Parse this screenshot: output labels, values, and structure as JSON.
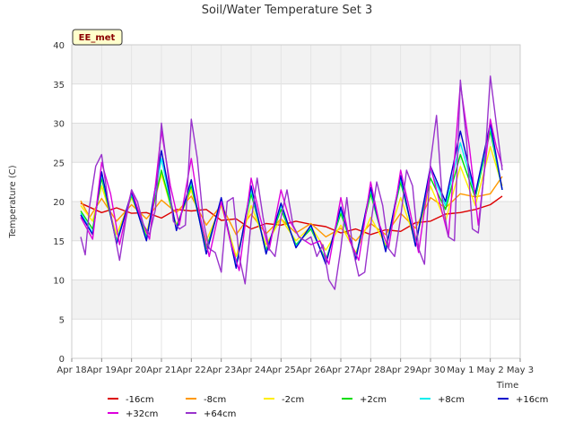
{
  "chart_data": {
    "type": "line",
    "title": "Soil/Water Temperature Set 3",
    "xlabel": "Time",
    "ylabel": "Temperature (C)",
    "badge": "EE_met",
    "ylim": [
      0,
      40
    ],
    "yticks": [
      0,
      5,
      10,
      15,
      20,
      25,
      30,
      35,
      40
    ],
    "xlim": [
      0,
      15
    ],
    "x_unit": "days from Apr 18",
    "xticks": [
      {
        "value": 0,
        "label": "Apr 18"
      },
      {
        "value": 1,
        "label": "Apr 19"
      },
      {
        "value": 2,
        "label": "Apr 20"
      },
      {
        "value": 3,
        "label": "Apr 21"
      },
      {
        "value": 4,
        "label": "Apr 22"
      },
      {
        "value": 5,
        "label": "Apr 23"
      },
      {
        "value": 6,
        "label": "Apr 24"
      },
      {
        "value": 7,
        "label": "Apr 25"
      },
      {
        "value": 8,
        "label": "Apr 26"
      },
      {
        "value": 9,
        "label": "Apr 27"
      },
      {
        "value": 10,
        "label": "Apr 28"
      },
      {
        "value": 11,
        "label": "Apr 29"
      },
      {
        "value": 12,
        "label": "Apr 30"
      },
      {
        "value": 13,
        "label": "May 1"
      },
      {
        "value": 14,
        "label": "May 2"
      },
      {
        "value": 15,
        "label": "May 3"
      }
    ],
    "grid": true,
    "legend_position": "bottom",
    "series": [
      {
        "name": "-16cm",
        "color": "#dd0000",
        "x": [
          0.3,
          1,
          1.5,
          2,
          2.5,
          3,
          3.5,
          4,
          4.5,
          5,
          5.5,
          6,
          6.5,
          7,
          7.5,
          8,
          8.5,
          9,
          9.5,
          10,
          10.5,
          11,
          11.5,
          12,
          12.5,
          13,
          13.5,
          14,
          14.4
        ],
        "y": [
          19.8,
          18.6,
          19.2,
          18.5,
          18.6,
          17.9,
          19.0,
          18.8,
          19.0,
          17.6,
          17.8,
          16.5,
          17.2,
          17.0,
          17.5,
          17.1,
          16.8,
          16.0,
          16.5,
          15.8,
          16.4,
          16.2,
          17.3,
          17.5,
          18.4,
          18.6,
          19.0,
          19.6,
          20.7
        ]
      },
      {
        "name": "-8cm",
        "color": "#ff9900",
        "x": [
          0.3,
          0.6,
          1,
          1.5,
          2,
          2.5,
          3,
          3.5,
          4,
          4.5,
          5,
          5.5,
          6,
          6.5,
          7,
          7.5,
          8,
          8.5,
          9,
          9.5,
          10,
          10.5,
          11,
          11.5,
          12,
          12.5,
          13,
          13.5,
          14,
          14.4
        ],
        "y": [
          20.1,
          18.0,
          20.4,
          17.5,
          19.6,
          17.8,
          20.2,
          18.6,
          20.7,
          17.0,
          19.6,
          15.8,
          18.4,
          15.9,
          17.8,
          16.0,
          17.2,
          15.5,
          16.6,
          15.0,
          17.2,
          15.8,
          18.5,
          16.6,
          20.5,
          19.2,
          21.0,
          20.6,
          21.0,
          23.2
        ]
      },
      {
        "name": "-2cm",
        "color": "#ffee00",
        "x": [
          0.3,
          0.7,
          1,
          1.5,
          2,
          2.5,
          3,
          3.5,
          4,
          4.5,
          5,
          5.5,
          6,
          6.5,
          7,
          7.5,
          8,
          8.5,
          9,
          9.5,
          10,
          10.5,
          11,
          11.5,
          12,
          12.5,
          13,
          13.5,
          14,
          14.4
        ],
        "y": [
          19.5,
          17.5,
          22.0,
          15.8,
          20.5,
          16.0,
          23.5,
          17.0,
          21.5,
          15.0,
          19.5,
          13.0,
          19.5,
          14.5,
          17.8,
          15.0,
          16.8,
          13.8,
          17.0,
          13.5,
          18.0,
          14.5,
          20.5,
          15.0,
          22.0,
          17.5,
          24.5,
          19.5,
          27.0,
          22.0
        ]
      },
      {
        "name": "+2cm",
        "color": "#00dd00",
        "x": [
          0.3,
          0.7,
          1,
          1.5,
          2,
          2.5,
          3,
          3.5,
          4,
          4.5,
          5,
          5.5,
          6,
          6.5,
          7,
          7.5,
          8,
          8.5,
          9,
          9.5,
          10,
          10.5,
          11,
          11.5,
          12,
          12.5,
          13,
          13.5,
          14,
          14.4
        ],
        "y": [
          18.8,
          16.5,
          23.0,
          15.0,
          20.8,
          15.5,
          24.0,
          16.8,
          22.0,
          14.0,
          20.0,
          12.0,
          21.0,
          13.8,
          19.0,
          14.5,
          16.5,
          12.5,
          18.5,
          13.0,
          21.0,
          14.0,
          22.5,
          14.8,
          23.0,
          19.0,
          26.0,
          20.5,
          29.0,
          21.5
        ]
      },
      {
        "name": "+8cm",
        "color": "#00eeee",
        "x": [
          0.3,
          0.7,
          1,
          1.5,
          2,
          2.5,
          3,
          3.5,
          4,
          4.5,
          5,
          5.5,
          6,
          6.5,
          7,
          7.5,
          8,
          8.5,
          9,
          9.5,
          10,
          10.5,
          11,
          11.5,
          12,
          12.5,
          13,
          13.5,
          14,
          14.4
        ],
        "y": [
          18.5,
          16.0,
          23.5,
          14.8,
          21.0,
          15.2,
          25.5,
          16.5,
          22.5,
          13.5,
          20.3,
          11.8,
          21.5,
          13.5,
          19.5,
          14.3,
          16.8,
          12.2,
          19.0,
          12.8,
          21.5,
          13.8,
          23.0,
          14.5,
          24.0,
          19.5,
          27.5,
          20.8,
          29.5,
          21.5
        ]
      },
      {
        "name": "+16cm",
        "color": "#0000cc",
        "x": [
          0.3,
          0.7,
          1,
          1.5,
          2,
          2.5,
          3,
          3.5,
          4,
          4.5,
          5,
          5.5,
          6,
          6.5,
          7,
          7.5,
          8,
          8.5,
          9,
          9.5,
          10,
          10.5,
          11,
          11.5,
          12,
          12.5,
          13,
          13.5,
          14,
          14.4
        ],
        "y": [
          18.3,
          15.8,
          23.8,
          14.6,
          21.2,
          15.0,
          26.5,
          16.3,
          22.8,
          13.3,
          20.5,
          11.5,
          22.0,
          13.3,
          19.8,
          14.1,
          17.0,
          12.0,
          19.3,
          12.6,
          21.8,
          13.6,
          23.3,
          14.3,
          24.5,
          20.0,
          29.0,
          21.0,
          30.0,
          21.5
        ]
      },
      {
        "name": "+32cm",
        "color": "#dd00dd",
        "x": [
          0.3,
          0.7,
          1,
          1.3,
          1.6,
          2,
          2.3,
          2.6,
          3,
          3.3,
          3.6,
          4,
          4.3,
          4.6,
          5,
          5.3,
          5.6,
          6,
          6.3,
          6.6,
          7,
          7.3,
          7.6,
          8,
          8.3,
          8.6,
          9,
          9.3,
          9.6,
          10,
          10.3,
          10.6,
          11,
          11.3,
          11.6,
          12,
          12.3,
          12.6,
          13,
          13.3,
          13.6,
          14,
          14.2,
          14.4
        ],
        "y": [
          18.0,
          15.2,
          25.0,
          21.0,
          14.5,
          21.5,
          18.0,
          15.2,
          29.0,
          22.0,
          17.0,
          25.5,
          18.0,
          13.0,
          20.0,
          15.0,
          11.2,
          23.0,
          18.0,
          13.8,
          21.5,
          17.5,
          15.5,
          14.5,
          15.0,
          12.0,
          20.5,
          15.0,
          12.5,
          22.5,
          17.0,
          14.0,
          24.0,
          19.0,
          13.5,
          24.5,
          20.0,
          15.5,
          35.0,
          27.0,
          17.0,
          30.5,
          27.0,
          24.5
        ]
      },
      {
        "name": "+64cm",
        "color": "#9933cc",
        "x": [
          0.3,
          0.45,
          0.6,
          0.8,
          1,
          1.2,
          1.4,
          1.6,
          1.8,
          2,
          2.2,
          2.4,
          2.6,
          2.8,
          3,
          3.2,
          3.4,
          3.6,
          3.8,
          4,
          4.2,
          4.4,
          4.6,
          4.8,
          5,
          5.2,
          5.4,
          5.6,
          5.8,
          6,
          6.2,
          6.4,
          6.6,
          6.8,
          7,
          7.2,
          7.4,
          7.6,
          7.8,
          8,
          8.2,
          8.4,
          8.6,
          8.8,
          9,
          9.2,
          9.4,
          9.6,
          9.8,
          10,
          10.2,
          10.4,
          10.6,
          10.8,
          11,
          11.2,
          11.4,
          11.6,
          11.8,
          12,
          12.2,
          12.4,
          12.6,
          12.8,
          13,
          13.2,
          13.4,
          13.6,
          13.8,
          14,
          14.2,
          14.4
        ],
        "y": [
          15.5,
          13.2,
          19.5,
          24.5,
          26.0,
          20.5,
          16.5,
          12.5,
          17.5,
          21.5,
          20.0,
          17.0,
          15.8,
          19.0,
          30.0,
          24.0,
          17.5,
          16.5,
          17.0,
          30.5,
          25.5,
          17.5,
          14.0,
          13.5,
          11.0,
          20.0,
          20.5,
          13.0,
          9.5,
          17.5,
          23.0,
          18.0,
          14.0,
          13.0,
          18.0,
          21.5,
          17.0,
          15.5,
          15.0,
          15.5,
          13.0,
          14.5,
          10.0,
          8.8,
          14.0,
          20.5,
          14.0,
          10.5,
          11.0,
          17.0,
          22.5,
          19.5,
          14.0,
          13.0,
          18.0,
          24.0,
          22.0,
          14.0,
          12.0,
          25.0,
          31.0,
          20.0,
          15.5,
          15.0,
          35.5,
          28.0,
          16.5,
          16.0,
          24.0,
          36.0,
          30.0,
          24.0
        ]
      }
    ]
  }
}
